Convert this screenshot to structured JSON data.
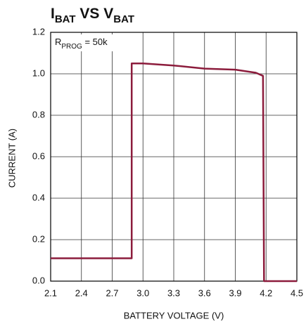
{
  "chart_data": {
    "type": "line",
    "title": [
      {
        "text": "I"
      },
      {
        "text": "BAT",
        "sub": true
      },
      {
        "text": " VS V"
      },
      {
        "text": "BAT",
        "sub": true
      }
    ],
    "annotation": [
      {
        "text": "R"
      },
      {
        "text": "PROG",
        "sub": true
      },
      {
        "text": " = 50k"
      }
    ],
    "xlabel": "BATTERY VOLTAGE (V)",
    "ylabel": "CURRENT (A)",
    "x": [
      2.1,
      2.89,
      2.89,
      3.0,
      3.3,
      3.6,
      3.9,
      4.1,
      4.17,
      4.18,
      4.5
    ],
    "series": [
      {
        "name": "IBAT",
        "color": "#8c1c3c",
        "values": [
          0.11,
          0.11,
          1.05,
          1.05,
          1.04,
          1.025,
          1.02,
          1.005,
          0.99,
          0,
          0
        ]
      }
    ],
    "xlim": [
      2.1,
      4.5
    ],
    "xticks": [
      2.1,
      2.4,
      2.7,
      {
        "value": 3,
        "label": "3.0"
      },
      3.3,
      3.6,
      3.9,
      4.2,
      4.5
    ],
    "ylim": [
      0,
      1.2
    ],
    "yticks": [
      {
        "value": 0,
        "label": "0.0"
      },
      0.2,
      0.4,
      0.6,
      0.8,
      {
        "value": 1,
        "label": "1.0"
      },
      1.2
    ],
    "grid": true
  }
}
